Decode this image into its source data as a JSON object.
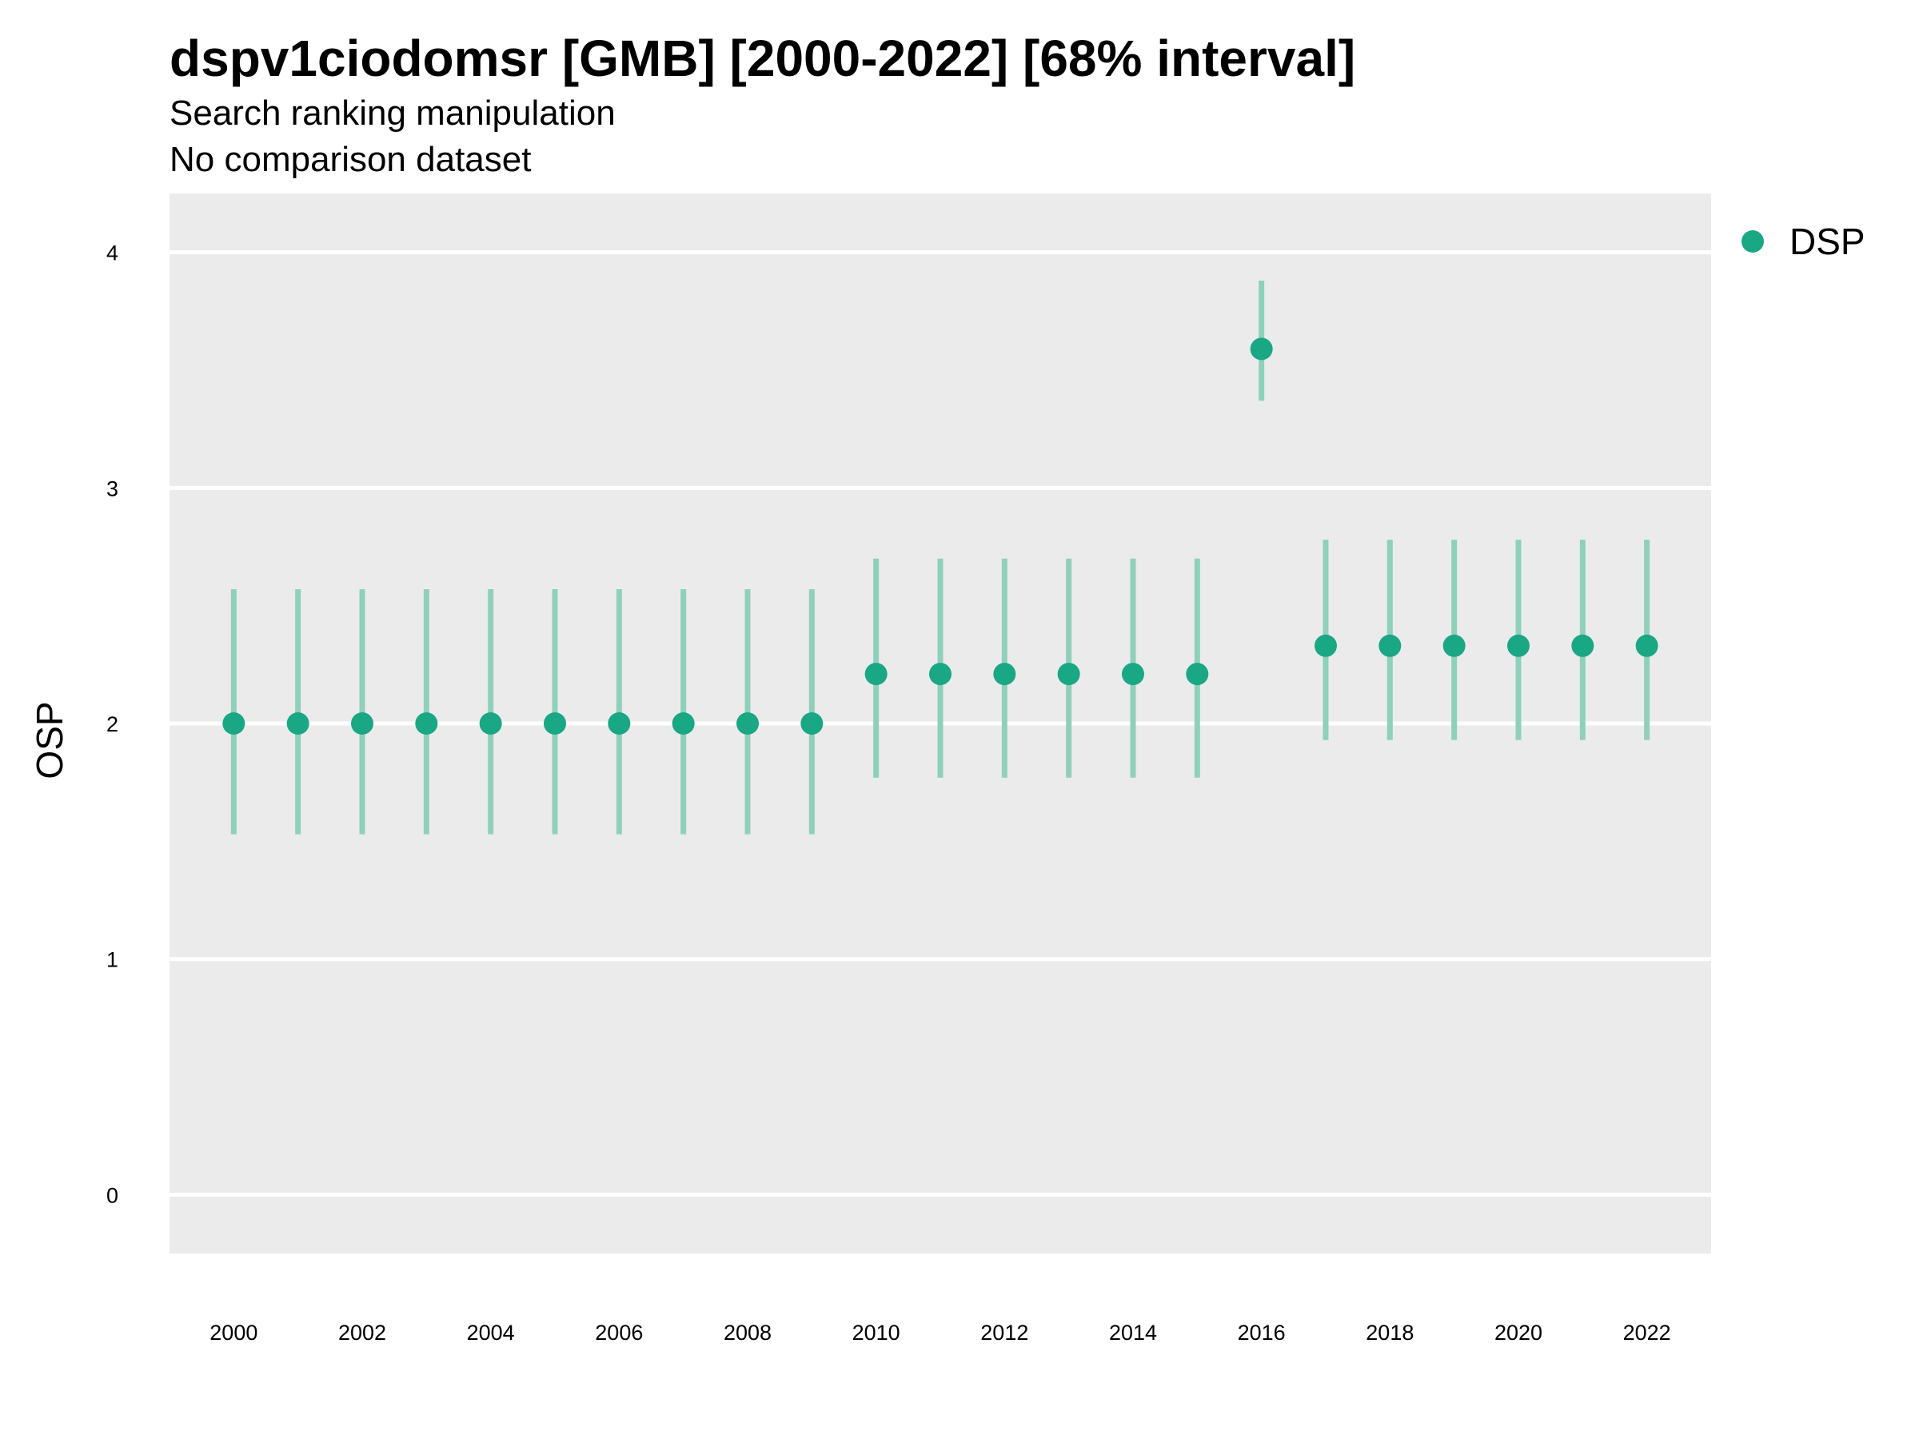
{
  "chart_data": {
    "type": "scatter",
    "title": "dspv1ciodomsr [GMB] [2000-2022] [68% interval]",
    "subtitle": "Search ranking manipulation",
    "subtitle2": "No comparison dataset",
    "xlabel": "",
    "ylabel": "OSP",
    "ylim": [
      -0.25,
      4.25
    ],
    "xlim": [
      1999,
      2023
    ],
    "yticks": [
      0,
      1,
      2,
      3,
      4
    ],
    "xticks": [
      2000,
      2002,
      2004,
      2006,
      2008,
      2010,
      2012,
      2014,
      2016,
      2018,
      2020,
      2022
    ],
    "grid": true,
    "legend_position": "top-right",
    "colors": {
      "point": "#1aa783",
      "interval": "#8fd0bb",
      "panel": "#ebebeb",
      "grid": "#ffffff"
    },
    "series": [
      {
        "name": "DSP",
        "x": [
          2000,
          2001,
          2002,
          2003,
          2004,
          2005,
          2006,
          2007,
          2008,
          2009,
          2010,
          2011,
          2012,
          2013,
          2014,
          2015,
          2016,
          2017,
          2018,
          2019,
          2020,
          2021,
          2022
        ],
        "y": [
          2.0,
          2.0,
          2.0,
          2.0,
          2.0,
          2.0,
          2.0,
          2.0,
          2.0,
          2.0,
          2.21,
          2.21,
          2.21,
          2.21,
          2.21,
          2.21,
          3.59,
          2.33,
          2.33,
          2.33,
          2.33,
          2.33,
          2.33
        ],
        "lower": [
          1.53,
          1.53,
          1.53,
          1.53,
          1.53,
          1.53,
          1.53,
          1.53,
          1.53,
          1.53,
          1.77,
          1.77,
          1.77,
          1.77,
          1.77,
          1.77,
          3.37,
          1.93,
          1.93,
          1.93,
          1.93,
          1.93,
          1.93
        ],
        "upper": [
          2.57,
          2.57,
          2.57,
          2.57,
          2.57,
          2.57,
          2.57,
          2.57,
          2.57,
          2.57,
          2.7,
          2.7,
          2.7,
          2.7,
          2.7,
          2.7,
          3.88,
          2.78,
          2.78,
          2.78,
          2.78,
          2.78,
          2.78
        ]
      }
    ]
  }
}
